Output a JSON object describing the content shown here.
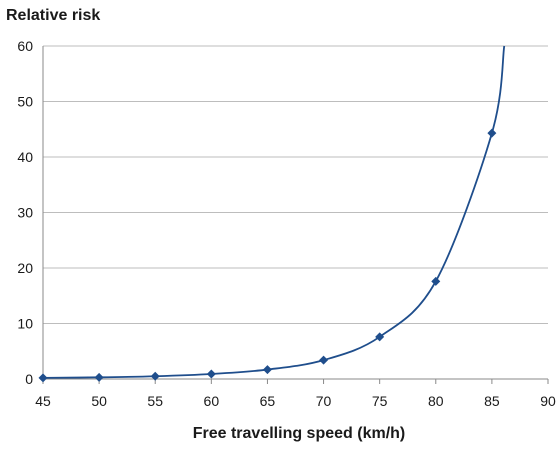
{
  "chart_data": {
    "type": "line",
    "title": "Relative risk",
    "xlabel": "Free travelling speed (km/h)",
    "ylabel": "",
    "xlim": [
      45,
      90
    ],
    "ylim": [
      0,
      60
    ],
    "xticks": [
      45,
      50,
      55,
      60,
      65,
      70,
      75,
      80,
      85,
      90
    ],
    "yticks": [
      0,
      10,
      20,
      30,
      40,
      50,
      60
    ],
    "grid": true,
    "legend": "none",
    "series": [
      {
        "color": "#1f4e8c",
        "marker": "diamond",
        "x": [
          45,
          50,
          55,
          60,
          65,
          70,
          75,
          80,
          85
        ],
        "y": [
          0.2,
          0.3,
          0.5,
          0.9,
          1.7,
          3.4,
          7.6,
          17.6,
          44.3
        ]
      }
    ],
    "curve_end": {
      "x": 86.1,
      "y": 60
    }
  }
}
